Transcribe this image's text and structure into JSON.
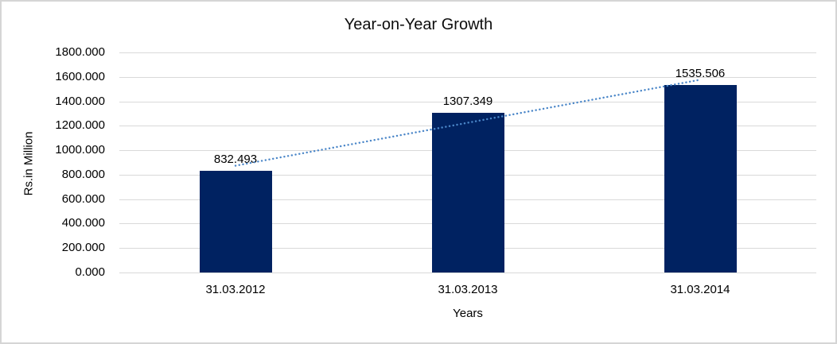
{
  "chart_data": {
    "type": "bar",
    "title": "Year-on-Year Growth",
    "categories": [
      "31.03.2012",
      "31.03.2013",
      "31.03.2014"
    ],
    "values": [
      832.493,
      1307.349,
      1535.506
    ],
    "value_labels": [
      "832.493",
      "1307.349",
      "1535.506"
    ],
    "xlabel": "Years",
    "ylabel": "Rs.in Million",
    "ylim": [
      0,
      1800
    ],
    "y_tick_step": 200,
    "y_tick_labels": [
      "0.000",
      "200.000",
      "400.000",
      "600.000",
      "800.000",
      "1000.000",
      "1200.000",
      "1400.000",
      "1600.000",
      "1800.000"
    ],
    "grid": true,
    "legend": "none",
    "bar_color": "#002261",
    "trendline": {
      "type": "linear",
      "style": "dotted",
      "color": "#4a86c8",
      "start_value": 873.6,
      "end_value": 1576.6
    }
  }
}
